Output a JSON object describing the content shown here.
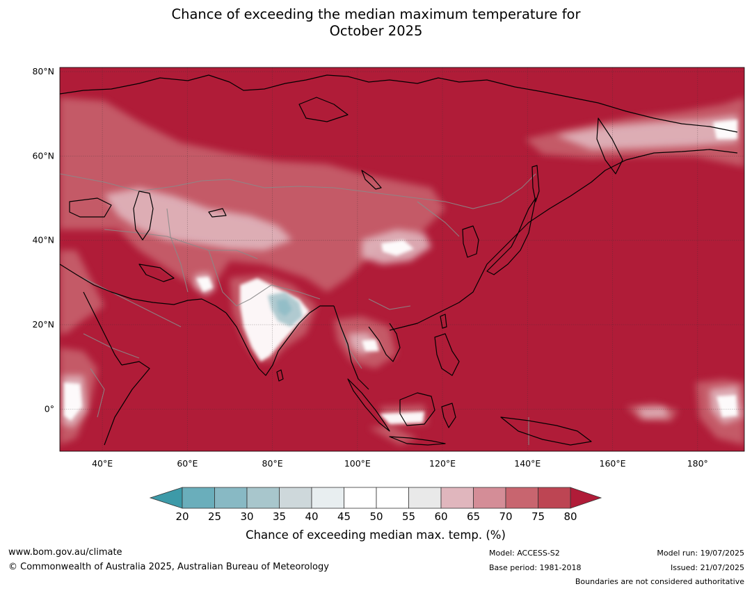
{
  "title": {
    "line1": "Chance of exceeding the median maximum temperature for",
    "line2": "October 2025"
  },
  "map": {
    "lon_range": [
      30,
      191
    ],
    "lat_range": [
      -10,
      81
    ],
    "latitude_ticks": [
      {
        "value": 80,
        "label": "80°N"
      },
      {
        "value": 60,
        "label": "60°N"
      },
      {
        "value": 40,
        "label": "40°N"
      },
      {
        "value": 20,
        "label": "20°N"
      },
      {
        "value": 0,
        "label": "0°"
      }
    ],
    "longitude_ticks": [
      {
        "value": 40,
        "label": "40°E"
      },
      {
        "value": 60,
        "label": "60°E"
      },
      {
        "value": 80,
        "label": "80°E"
      },
      {
        "value": 100,
        "label": "100°E"
      },
      {
        "value": 120,
        "label": "120°E"
      },
      {
        "value": 140,
        "label": "140°E"
      },
      {
        "value": 160,
        "label": "160°E"
      },
      {
        "value": 180,
        "label": "180°"
      }
    ],
    "dominant_category": "> 80%",
    "colors": {
      "ocean_high": "#b01c38"
    }
  },
  "colorbar": {
    "title": "Chance of exceeding median max. temp. (%)",
    "tick_labels": [
      "20",
      "25",
      "30",
      "35",
      "40",
      "45",
      "50",
      "55",
      "60",
      "65",
      "70",
      "75",
      "80"
    ],
    "under_color": "#3d9aa8",
    "over_color": "#b01c38",
    "bin_colors": [
      "#6aaebb",
      "#88b9c4",
      "#a8c6cc",
      "#ced8db",
      "#e8eef0",
      "#ffffff",
      "#ffffff",
      "#e9e9e9",
      "#e0b6bd",
      "#d48d97",
      "#c8656f",
      "#bd4553"
    ]
  },
  "footer": {
    "website": "www.bom.gov.au/climate",
    "copyright": "© Commonwealth of Australia 2025, Australian Bureau of Meteorology",
    "model": "Model: ACCESS-S2",
    "base_period": "Base period: 1981-2018",
    "model_run": "Model run: 19/07/2025",
    "issued": "Issued: 21/07/2025",
    "disclaimer": "Boundaries are not considered authoritative"
  }
}
